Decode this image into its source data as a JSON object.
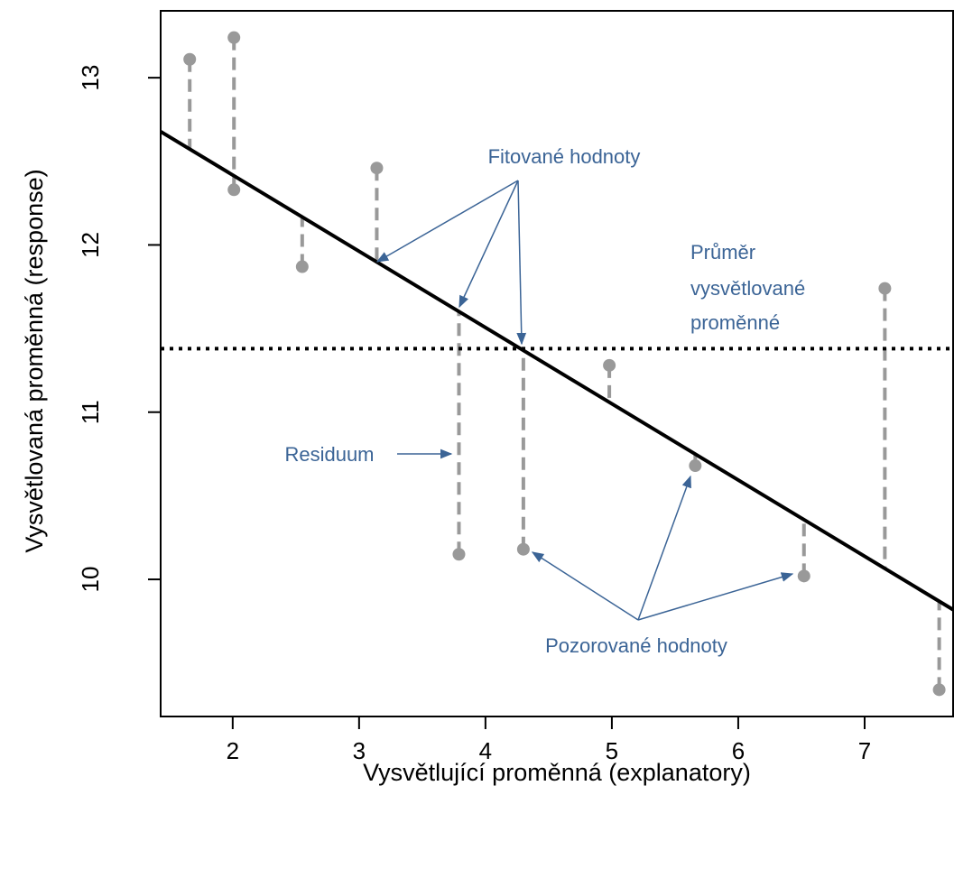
{
  "chart_data": {
    "type": "scatter",
    "x_label": "Vysvětlující proměnná (explanatory)",
    "y_label": "Vysvětlovaná proměnná (response)",
    "x": [
      1.66,
      2.01,
      2.01,
      2.55,
      3.14,
      3.79,
      4.3,
      4.98,
      5.66,
      6.52,
      7.16,
      7.59
    ],
    "values": [
      13.11,
      13.24,
      12.33,
      11.87,
      12.46,
      10.15,
      10.18,
      11.28,
      10.68,
      10.02,
      11.74,
      9.34
    ],
    "color": "#999999",
    "fit": {
      "intercept": 13.33,
      "slope": -0.456,
      "color": "#000000"
    },
    "mean": 11.38,
    "xlim": [
      1.43,
      7.7
    ],
    "ylim": [
      9.18,
      13.4
    ],
    "xticks": [
      2,
      3,
      4,
      5,
      6,
      7
    ],
    "yticks": [
      10,
      11,
      12,
      13
    ],
    "annotations": {
      "fitted": "Fitované hodnoty",
      "mean": [
        "Průměr",
        "vysvětlované",
        "proměnné"
      ],
      "residual": "Residuum",
      "observed": "Pozorované hodnoty"
    }
  }
}
